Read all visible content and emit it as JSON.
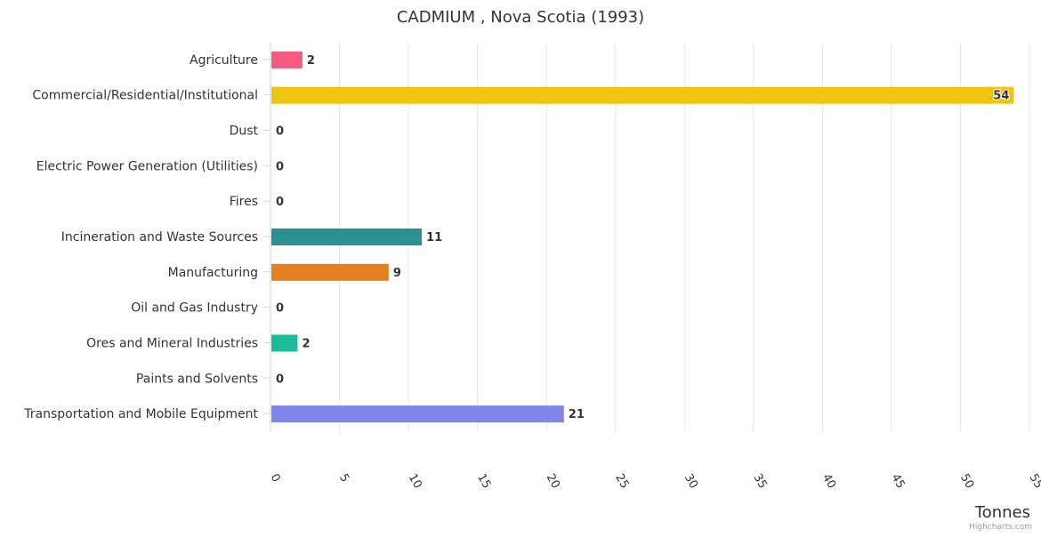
{
  "chart_data": {
    "type": "bar",
    "orientation": "horizontal",
    "title": "CADMIUM , Nova Scotia (1993)",
    "xlabel": "Tonnes",
    "ylabel": "",
    "xlim": [
      0,
      55
    ],
    "ticks": [
      0,
      5,
      10,
      15,
      20,
      25,
      30,
      35,
      40,
      45,
      50,
      55
    ],
    "grid": true,
    "categories": [
      "Agriculture",
      "Commercial/Residential/Institutional",
      "Dust",
      "Electric Power Generation (Utilities)",
      "Fires",
      "Incineration and Waste Sources",
      "Manufacturing",
      "Oil and Gas Industry",
      "Ores and Mineral Industries",
      "Paints and Solvents",
      "Transportation and Mobile Equipment"
    ],
    "values": [
      2.25,
      53.8,
      0,
      0,
      0,
      10.9,
      8.5,
      0,
      1.9,
      0,
      21.2
    ],
    "data_labels": [
      "2",
      "54",
      "0",
      "0",
      "0",
      "11",
      "9",
      "0",
      "2",
      "0",
      "21"
    ],
    "colors": [
      "#f45b7f",
      "#f1c40f",
      "#2b908f",
      "#2b908f",
      "#2b908f",
      "#2b908f",
      "#e67e22",
      "#2b908f",
      "#1abc9c",
      "#2b908f",
      "#8085e9"
    ],
    "credits": "Highcharts.com"
  }
}
